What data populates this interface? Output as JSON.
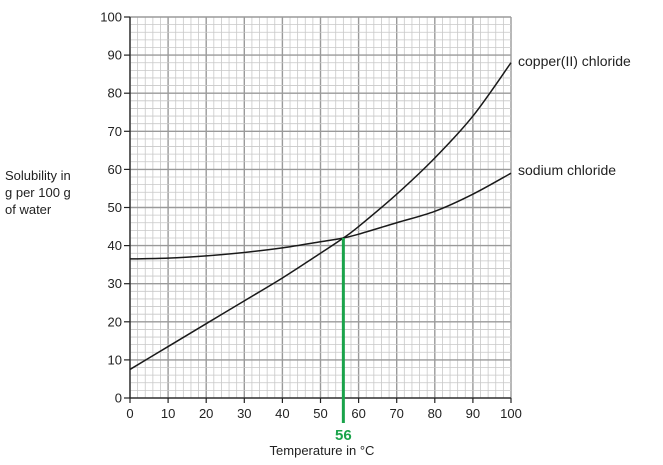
{
  "chart_data": {
    "type": "line",
    "xlabel": "Temperature in °C",
    "ylabel_lines": [
      "Solubility in",
      "g per 100 g",
      "of water"
    ],
    "xlim": [
      0,
      100
    ],
    "ylim": [
      0,
      100
    ],
    "x_ticks": [
      "0",
      "10",
      "20",
      "30",
      "40",
      "50",
      "60",
      "70",
      "80",
      "90",
      "100"
    ],
    "y_ticks": [
      "0",
      "10",
      "20",
      "30",
      "40",
      "50",
      "60",
      "70",
      "80",
      "90",
      "100"
    ],
    "grid": true,
    "grid_minor_step": 2,
    "grid_major_step": 10,
    "series": [
      {
        "name": "copper(II) chloride",
        "color": "#1a1a1a",
        "x": [
          0,
          10,
          20,
          30,
          40,
          50,
          56,
          60,
          70,
          80,
          90,
          100
        ],
        "y": [
          7.5,
          13.5,
          19.5,
          25.5,
          31.5,
          38,
          42,
          45,
          53.5,
          63,
          74,
          88
        ]
      },
      {
        "name": "sodium chloride",
        "color": "#1a1a1a",
        "x": [
          0,
          10,
          20,
          30,
          40,
          50,
          56,
          60,
          70,
          80,
          90,
          100
        ],
        "y": [
          36.5,
          36.7,
          37.3,
          38.2,
          39.4,
          41,
          42,
          43,
          46,
          49,
          53.5,
          59
        ]
      }
    ],
    "annotation": {
      "x": 56,
      "y": 42,
      "label": "56",
      "color": "#1aa34a"
    }
  }
}
